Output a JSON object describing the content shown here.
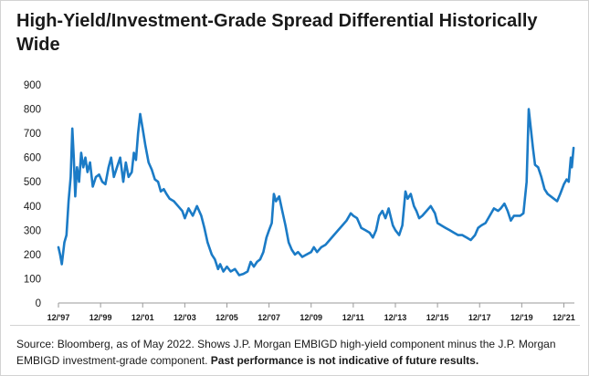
{
  "chart_data": {
    "type": "line",
    "title": "High-Yield/Investment-Grade Spread Differential Historically Wide",
    "xlabel": "",
    "ylabel": "",
    "ylim": [
      0,
      900
    ],
    "yticks": [
      0,
      100,
      200,
      300,
      400,
      500,
      600,
      700,
      800,
      900
    ],
    "xlim": [
      1997.92,
      2022.42
    ],
    "xticks": [
      {
        "label": "12/'97",
        "value": 1997.92
      },
      {
        "label": "12/'99",
        "value": 1999.92
      },
      {
        "label": "12/'01",
        "value": 2001.92
      },
      {
        "label": "12/'03",
        "value": 2003.92
      },
      {
        "label": "12/'05",
        "value": 2005.92
      },
      {
        "label": "12/'07",
        "value": 2007.92
      },
      {
        "label": "12/'09",
        "value": 2009.92
      },
      {
        "label": "12/'11",
        "value": 2011.92
      },
      {
        "label": "12/'13",
        "value": 2013.92
      },
      {
        "label": "12/'15",
        "value": 2015.92
      },
      {
        "label": "12/'17",
        "value": 2017.92
      },
      {
        "label": "12/'19",
        "value": 2019.92
      },
      {
        "label": "12/'21",
        "value": 2021.92
      }
    ],
    "grid": false,
    "legend": "none",
    "color": "#1b7bc6",
    "series": [
      {
        "name": "",
        "points": [
          [
            1997.92,
            230
          ],
          [
            1998.0,
            200
          ],
          [
            1998.08,
            160
          ],
          [
            1998.2,
            250
          ],
          [
            1998.3,
            280
          ],
          [
            1998.4,
            420
          ],
          [
            1998.5,
            520
          ],
          [
            1998.58,
            720
          ],
          [
            1998.65,
            600
          ],
          [
            1998.72,
            440
          ],
          [
            1998.8,
            560
          ],
          [
            1998.9,
            500
          ],
          [
            1999.0,
            620
          ],
          [
            1999.1,
            560
          ],
          [
            1999.2,
            600
          ],
          [
            1999.3,
            540
          ],
          [
            1999.42,
            580
          ],
          [
            1999.55,
            480
          ],
          [
            1999.7,
            520
          ],
          [
            1999.85,
            530
          ],
          [
            2000.0,
            500
          ],
          [
            2000.15,
            490
          ],
          [
            2000.3,
            560
          ],
          [
            2000.42,
            600
          ],
          [
            2000.55,
            520
          ],
          [
            2000.7,
            560
          ],
          [
            2000.85,
            600
          ],
          [
            2001.0,
            500
          ],
          [
            2001.12,
            580
          ],
          [
            2001.25,
            520
          ],
          [
            2001.4,
            540
          ],
          [
            2001.5,
            620
          ],
          [
            2001.6,
            590
          ],
          [
            2001.7,
            700
          ],
          [
            2001.8,
            780
          ],
          [
            2001.92,
            720
          ],
          [
            2002.05,
            650
          ],
          [
            2002.2,
            580
          ],
          [
            2002.35,
            550
          ],
          [
            2002.5,
            510
          ],
          [
            2002.65,
            500
          ],
          [
            2002.78,
            460
          ],
          [
            2002.92,
            470
          ],
          [
            2003.05,
            450
          ],
          [
            2003.2,
            430
          ],
          [
            2003.4,
            420
          ],
          [
            2003.6,
            400
          ],
          [
            2003.8,
            380
          ],
          [
            2003.92,
            350
          ],
          [
            2004.1,
            390
          ],
          [
            2004.3,
            360
          ],
          [
            2004.5,
            400
          ],
          [
            2004.7,
            360
          ],
          [
            2004.85,
            310
          ],
          [
            2005.0,
            250
          ],
          [
            2005.2,
            200
          ],
          [
            2005.35,
            180
          ],
          [
            2005.5,
            140
          ],
          [
            2005.6,
            160
          ],
          [
            2005.75,
            130
          ],
          [
            2005.92,
            150
          ],
          [
            2006.1,
            130
          ],
          [
            2006.3,
            140
          ],
          [
            2006.5,
            115
          ],
          [
            2006.7,
            120
          ],
          [
            2006.9,
            130
          ],
          [
            2007.05,
            170
          ],
          [
            2007.2,
            150
          ],
          [
            2007.35,
            170
          ],
          [
            2007.5,
            180
          ],
          [
            2007.65,
            210
          ],
          [
            2007.8,
            270
          ],
          [
            2007.92,
            300
          ],
          [
            2008.05,
            330
          ],
          [
            2008.15,
            450
          ],
          [
            2008.25,
            420
          ],
          [
            2008.4,
            440
          ],
          [
            2008.55,
            380
          ],
          [
            2008.7,
            320
          ],
          [
            2008.85,
            250
          ],
          [
            2009.0,
            220
          ],
          [
            2009.15,
            200
          ],
          [
            2009.3,
            210
          ],
          [
            2009.5,
            190
          ],
          [
            2009.7,
            200
          ],
          [
            2009.92,
            210
          ],
          [
            2010.05,
            230
          ],
          [
            2010.2,
            210
          ],
          [
            2010.4,
            230
          ],
          [
            2010.6,
            240
          ],
          [
            2010.8,
            260
          ],
          [
            2011.0,
            280
          ],
          [
            2011.2,
            300
          ],
          [
            2011.4,
            320
          ],
          [
            2011.6,
            340
          ],
          [
            2011.8,
            370
          ],
          [
            2011.92,
            360
          ],
          [
            2012.1,
            350
          ],
          [
            2012.3,
            310
          ],
          [
            2012.5,
            300
          ],
          [
            2012.7,
            290
          ],
          [
            2012.85,
            270
          ],
          [
            2013.0,
            300
          ],
          [
            2013.15,
            360
          ],
          [
            2013.3,
            380
          ],
          [
            2013.45,
            350
          ],
          [
            2013.6,
            390
          ],
          [
            2013.8,
            320
          ],
          [
            2013.92,
            300
          ],
          [
            2014.1,
            280
          ],
          [
            2014.25,
            320
          ],
          [
            2014.4,
            460
          ],
          [
            2014.5,
            430
          ],
          [
            2014.65,
            450
          ],
          [
            2014.8,
            400
          ],
          [
            2014.92,
            380
          ],
          [
            2015.05,
            350
          ],
          [
            2015.2,
            360
          ],
          [
            2015.4,
            380
          ],
          [
            2015.6,
            400
          ],
          [
            2015.8,
            370
          ],
          [
            2015.92,
            330
          ],
          [
            2016.1,
            320
          ],
          [
            2016.3,
            310
          ],
          [
            2016.5,
            300
          ],
          [
            2016.7,
            290
          ],
          [
            2016.9,
            280
          ],
          [
            2017.1,
            280
          ],
          [
            2017.3,
            270
          ],
          [
            2017.5,
            260
          ],
          [
            2017.7,
            280
          ],
          [
            2017.85,
            310
          ],
          [
            2018.0,
            320
          ],
          [
            2018.2,
            330
          ],
          [
            2018.4,
            360
          ],
          [
            2018.6,
            390
          ],
          [
            2018.8,
            380
          ],
          [
            2018.92,
            390
          ],
          [
            2019.1,
            410
          ],
          [
            2019.25,
            380
          ],
          [
            2019.4,
            340
          ],
          [
            2019.55,
            360
          ],
          [
            2019.7,
            360
          ],
          [
            2019.85,
            360
          ],
          [
            2020.0,
            370
          ],
          [
            2020.15,
            500
          ],
          [
            2020.25,
            800
          ],
          [
            2020.35,
            720
          ],
          [
            2020.45,
            640
          ],
          [
            2020.55,
            570
          ],
          [
            2020.7,
            560
          ],
          [
            2020.85,
            520
          ],
          [
            2021.0,
            470
          ],
          [
            2021.15,
            450
          ],
          [
            2021.3,
            440
          ],
          [
            2021.45,
            430
          ],
          [
            2021.6,
            420
          ],
          [
            2021.75,
            450
          ],
          [
            2021.92,
            490
          ],
          [
            2022.05,
            510
          ],
          [
            2022.15,
            500
          ],
          [
            2022.25,
            600
          ],
          [
            2022.3,
            560
          ],
          [
            2022.38,
            640
          ]
        ]
      }
    ]
  },
  "footer": {
    "source": "Source: Bloomberg, as of May 2022. Shows J.P. Morgan EMBIGD high-yield component minus the J.P. Morgan EMBIGD investment-grade component.",
    "disclaimer": "Past performance is not indicative of future results."
  }
}
